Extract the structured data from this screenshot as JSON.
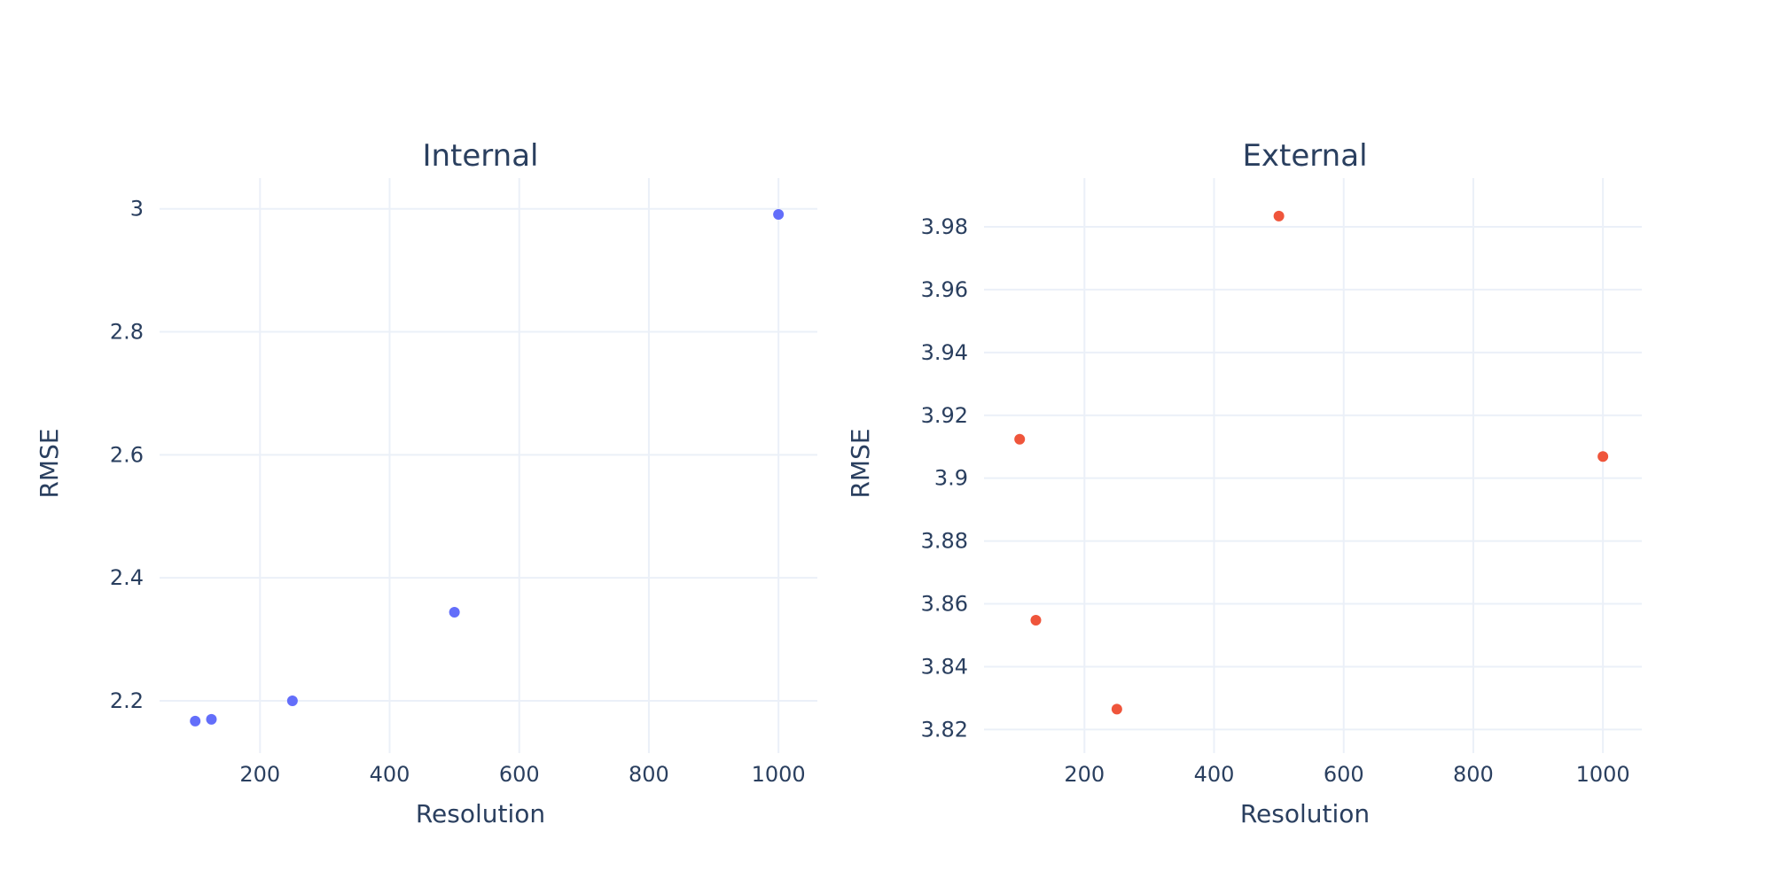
{
  "chart_data": [
    {
      "type": "scatter",
      "title": "Internal",
      "xlabel": "Resolution",
      "ylabel": "RMSE",
      "xlim": [
        45,
        1060
      ],
      "ylim": [
        2.115,
        3.05
      ],
      "xticks": [
        200,
        400,
        600,
        800,
        1000
      ],
      "yticks": [
        2.2,
        2.4,
        2.6,
        2.8,
        3
      ],
      "ytick_labels": [
        "2.2",
        "2.4",
        "2.6",
        "2.8",
        "3"
      ],
      "grid": true,
      "series": [
        {
          "color": "#636efa",
          "x": [
            100,
            125,
            250,
            500,
            1000
          ],
          "y": [
            2.167,
            2.17,
            2.2,
            2.344,
            2.991
          ]
        }
      ]
    },
    {
      "type": "scatter",
      "title": "External",
      "xlabel": "Resolution",
      "ylabel": "RMSE",
      "xlim": [
        45,
        1060
      ],
      "ylim": [
        3.8125,
        3.9955
      ],
      "xticks": [
        200,
        400,
        600,
        800,
        1000
      ],
      "yticks": [
        3.82,
        3.84,
        3.86,
        3.88,
        3.9,
        3.92,
        3.94,
        3.96,
        3.98
      ],
      "ytick_labels": [
        "3.82",
        "3.84",
        "3.86",
        "3.88",
        "3.9",
        "3.92",
        "3.94",
        "3.96",
        "3.98"
      ],
      "grid": true,
      "series": [
        {
          "color": "#ef553b",
          "x": [
            100,
            125,
            250,
            500,
            1000
          ],
          "y": [
            3.9124,
            3.8548,
            3.8265,
            3.9834,
            3.9069
          ]
        }
      ]
    }
  ]
}
